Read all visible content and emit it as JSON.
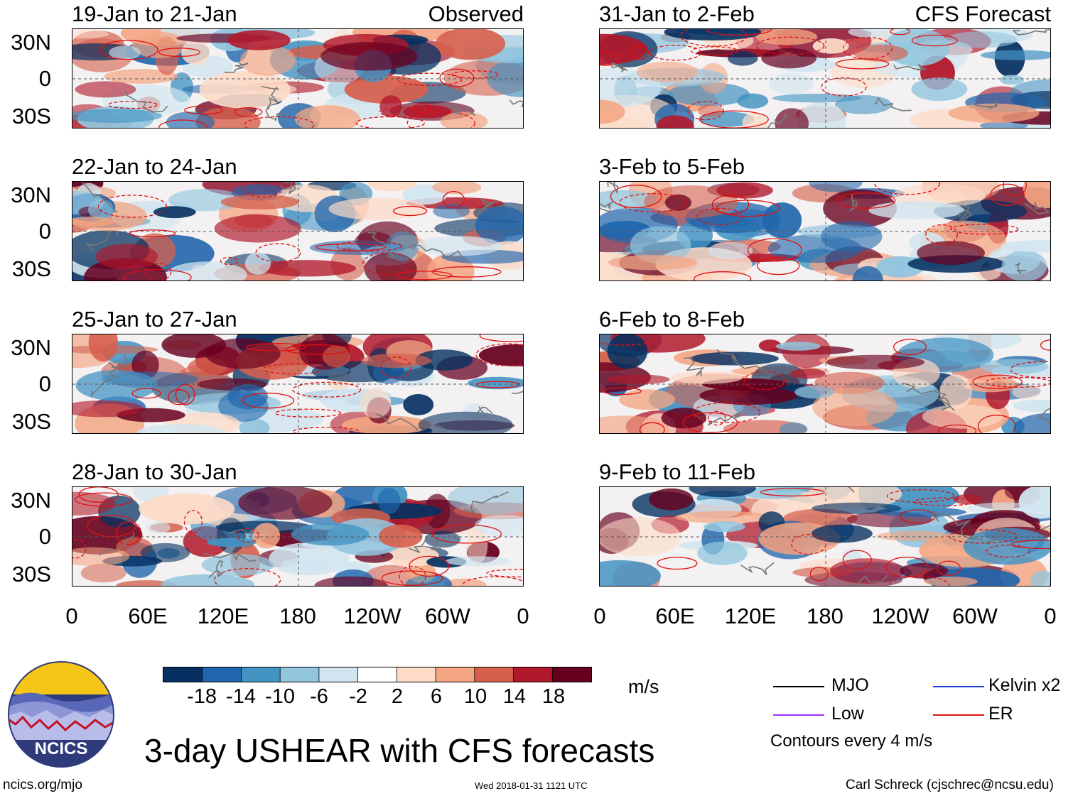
{
  "panel_labels": {
    "observed": "Observed",
    "forecast": "CFS Forecast"
  },
  "latitude_labels": [
    "30N",
    "0",
    "30S"
  ],
  "longitude_labels": [
    "0",
    "60E",
    "120E",
    "180",
    "120W",
    "60W",
    "0"
  ],
  "panels": [
    {
      "title": "19-Jan to 21-Jan",
      "source": "observed"
    },
    {
      "title": "22-Jan to 24-Jan",
      "source": "observed"
    },
    {
      "title": "25-Jan to 27-Jan",
      "source": "observed"
    },
    {
      "title": "28-Jan to 30-Jan",
      "source": "observed"
    },
    {
      "title": "31-Jan to 2-Feb",
      "source": "forecast"
    },
    {
      "title": "3-Feb to 5-Feb",
      "source": "forecast"
    },
    {
      "title": "6-Feb to 8-Feb",
      "source": "forecast"
    },
    {
      "title": "9-Feb to 11-Feb",
      "source": "forecast"
    }
  ],
  "colorbar": {
    "colors": [
      "#053061",
      "#2166ac",
      "#4393c3",
      "#92c5de",
      "#d1e5f0",
      "#ffffff",
      "#fddbc7",
      "#f4a582",
      "#d6604d",
      "#b2182b",
      "#67001f"
    ],
    "tick_labels": [
      "-18",
      "-14",
      "-10",
      "-6",
      "-2",
      "2",
      "6",
      "10",
      "14",
      "18"
    ],
    "units": "m/s"
  },
  "legend": {
    "items": [
      {
        "label": "MJO",
        "color": "#000000"
      },
      {
        "label": "Kelvin x2",
        "color": "#1f3fd8"
      },
      {
        "label": "Low",
        "color": "#9b30ff"
      },
      {
        "label": "ER",
        "color": "#e01010"
      }
    ],
    "contour_note": "Contours every 4 m/s"
  },
  "main_title": "3-day USHEAR with CFS forecasts",
  "org_logo_text": "NCICS",
  "footer": {
    "url": "ncics.org/mjo",
    "timestamp": "Wed 2018-01-31 1121 UTC",
    "author": "Carl Schreck (cjschrec@ncsu.edu)"
  }
}
